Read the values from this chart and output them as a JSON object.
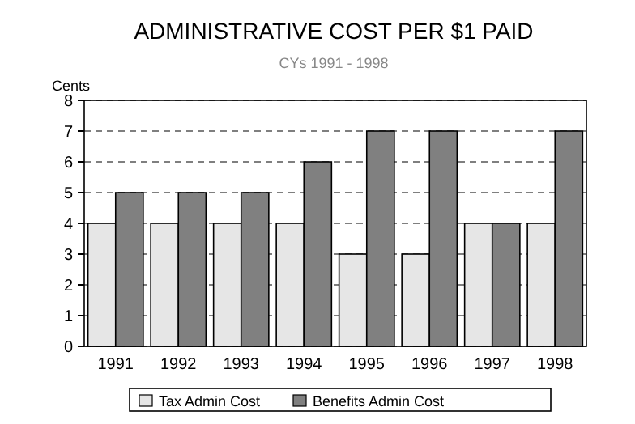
{
  "chart_data": {
    "type": "bar",
    "title": "ADMINISTRATIVE COST PER $1 PAID",
    "subtitle": "CYs 1991 - 1998",
    "ylabel": "Cents",
    "categories": [
      "1991",
      "1992",
      "1993",
      "1994",
      "1995",
      "1996",
      "1997",
      "1998"
    ],
    "series": [
      {
        "name": "Tax Admin Cost",
        "color": "#e6e6e6",
        "values": [
          4,
          4,
          4,
          4,
          3,
          3,
          4,
          4
        ]
      },
      {
        "name": "Benefits Admin Cost",
        "color": "#808080",
        "values": [
          5,
          5,
          5,
          6,
          7,
          7,
          4,
          7
        ]
      }
    ],
    "ylim": [
      0,
      8
    ],
    "yticks": [
      0,
      1,
      2,
      3,
      4,
      5,
      6,
      7,
      8
    ],
    "grid": "y",
    "legend": "bottom"
  }
}
